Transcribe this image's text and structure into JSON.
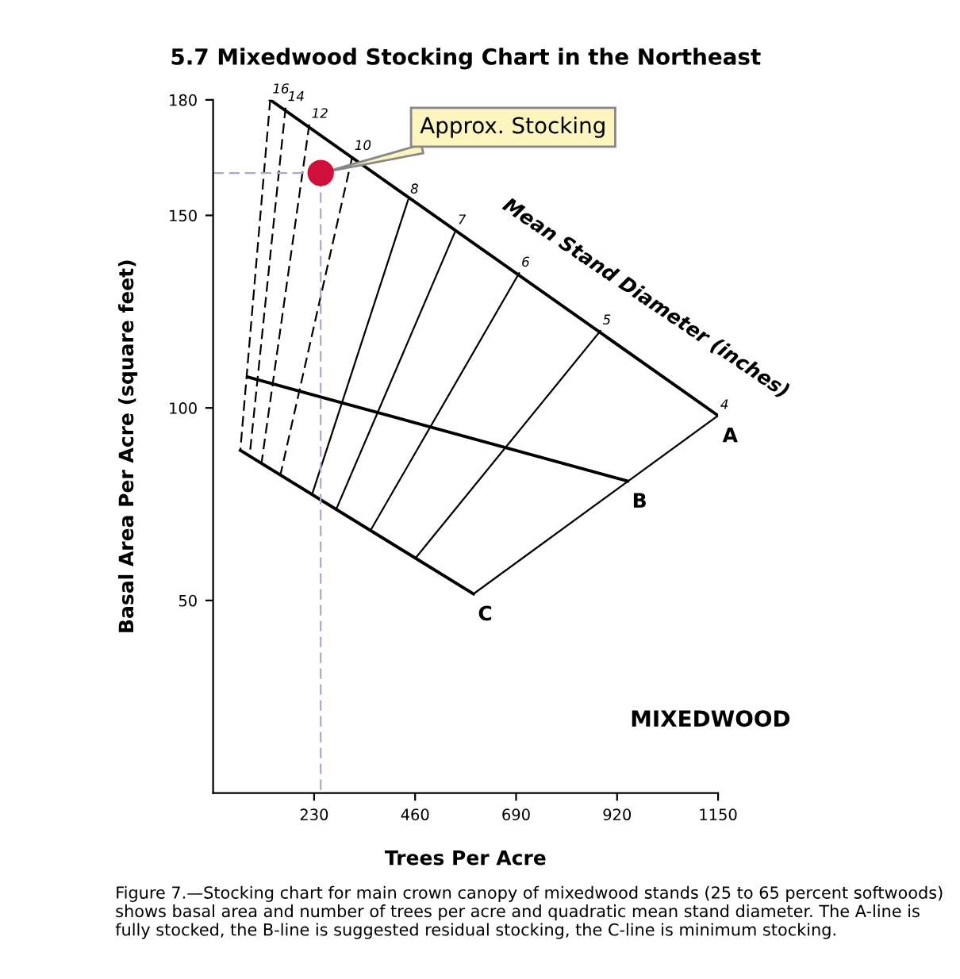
{
  "chart_data": {
    "type": "line",
    "title": "5.7 Mixedwood Stocking Chart in the Northeast",
    "xlabel": "Trees Per Acre",
    "ylabel": "Basal Area Per Acre (square feet)",
    "xlim": [
      0,
      1150
    ],
    "xticks": [
      230,
      460,
      690,
      920,
      1150
    ],
    "ylim": [
      0,
      180
    ],
    "yticks": [
      50,
      100,
      150,
      180
    ],
    "grid": false,
    "legend": false,
    "series": [
      {
        "name": "A",
        "color": "#000000",
        "x": [
          130,
          1150
        ],
        "values": [
          180,
          98
        ]
      },
      {
        "name": "B",
        "color": "#000000",
        "x": [
          80,
          944
        ],
        "values": [
          108,
          81
        ]
      },
      {
        "name": "C",
        "color": "#000000",
        "x": [
          62,
          593
        ],
        "values": [
          89,
          51.7
        ]
      },
      {
        "color": "#000000",
        "line_style": "dashed",
        "x": [
          130,
          62
        ],
        "values": [
          180,
          89
        ]
      },
      {
        "color": "#000000",
        "line_style": "dashed",
        "x": [
          165,
          83
        ],
        "values": [
          178,
          87.4
        ]
      },
      {
        "color": "#000000",
        "line_style": "dashed",
        "x": [
          219,
          110
        ],
        "values": [
          173.6,
          85.5
        ]
      },
      {
        "color": "#000000",
        "line_style": "dashed",
        "x": [
          317,
          153
        ],
        "values": [
          165.3,
          82.5
        ]
      },
      {
        "color": "#000000",
        "x": [
          444,
          225
        ],
        "values": [
          154,
          77.4
        ]
      },
      {
        "color": "#000000",
        "x": [
          552,
          280
        ],
        "values": [
          146,
          73.6
        ]
      },
      {
        "color": "#000000",
        "x": [
          697,
          358
        ],
        "values": [
          135,
          68.1
        ]
      },
      {
        "color": "#000000",
        "x": [
          882,
          461
        ],
        "values": [
          120,
          61
        ]
      },
      {
        "color": "#000000",
        "x": [
          1150,
          593
        ],
        "values": [
          98,
          51.7
        ]
      },
      {
        "color": "#b8a0d0",
        "line_style": "dashed",
        "x": [
          0,
          245,
          245
        ],
        "values": [
          161,
          161,
          0
        ]
      },
      {
        "name": "Approx. Stocking",
        "type": "scatter",
        "marker": "circle",
        "color": "#d0103a",
        "x": [
          245
        ],
        "values": [
          161
        ]
      }
    ],
    "annotations": [
      {
        "text": "16",
        "x": 130,
        "y": 180
      },
      {
        "text": "14",
        "x": 165,
        "y": 178
      },
      {
        "text": "12",
        "x": 219,
        "y": 173.6
      },
      {
        "text": "10",
        "x": 317,
        "y": 165.3
      },
      {
        "text": "8",
        "x": 444,
        "y": 154
      },
      {
        "text": "7",
        "x": 552,
        "y": 146
      },
      {
        "text": "6",
        "x": 697,
        "y": 135
      },
      {
        "text": "5",
        "x": 882,
        "y": 120
      },
      {
        "text": "4",
        "x": 1150,
        "y": 98
      },
      "Mean Stand Diameter (inches)",
      "MIXEDWOOD",
      "Figure 7.—Stocking chart for main crown canopy of mixedwood stands (25 to 65 percent softwoods) shows basal area and number of trees per acre and quadratic mean stand diameter. The A-line is fully stocked, the B-line is suggested residual stocking, the C-line is minimum stocking."
    ]
  }
}
